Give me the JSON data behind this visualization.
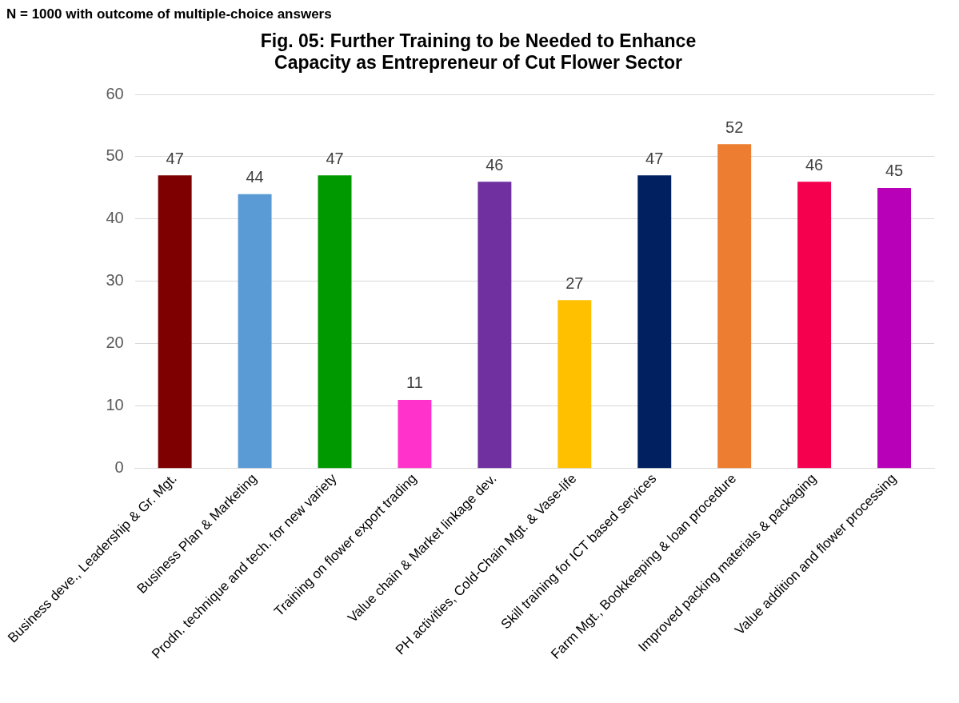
{
  "chart_data": {
    "type": "bar",
    "title": "Fig. 05: Further Training to be Needed to Enhance Capacity as Entrepreneur of Cut Flower Sector",
    "annotations": [
      "N = 1000 with outcome of multiple-choice answers"
    ],
    "categories": [
      "Business deve., Leadership & Gr. Mgt.",
      "Business Plan & Marketing",
      "Prodn. technique and tech. for new variety",
      "Training on flower export trading",
      "Value chain & Market linkage dev.",
      "PH activities, Cold-Chain Mgt. & Vase-life",
      "Skill training for ICT based services",
      "Farm Mgt., Bookkeeping & loan procedure",
      "Improved packing materials & packaging",
      "Value addition and flower processing"
    ],
    "values": [
      47,
      44,
      47,
      11,
      46,
      27,
      47,
      52,
      46,
      45
    ],
    "colors": [
      "#7f0000",
      "#5b9bd5",
      "#009900",
      "#ff33cc",
      "#7030a0",
      "#ffc000",
      "#002060",
      "#ed7d31",
      "#f5004f",
      "#b800b8"
    ],
    "ylim": [
      0,
      60
    ],
    "yticks": [
      0,
      10,
      20,
      30,
      40,
      50,
      60
    ],
    "grid": "y",
    "legend": false,
    "data_labels": true
  }
}
